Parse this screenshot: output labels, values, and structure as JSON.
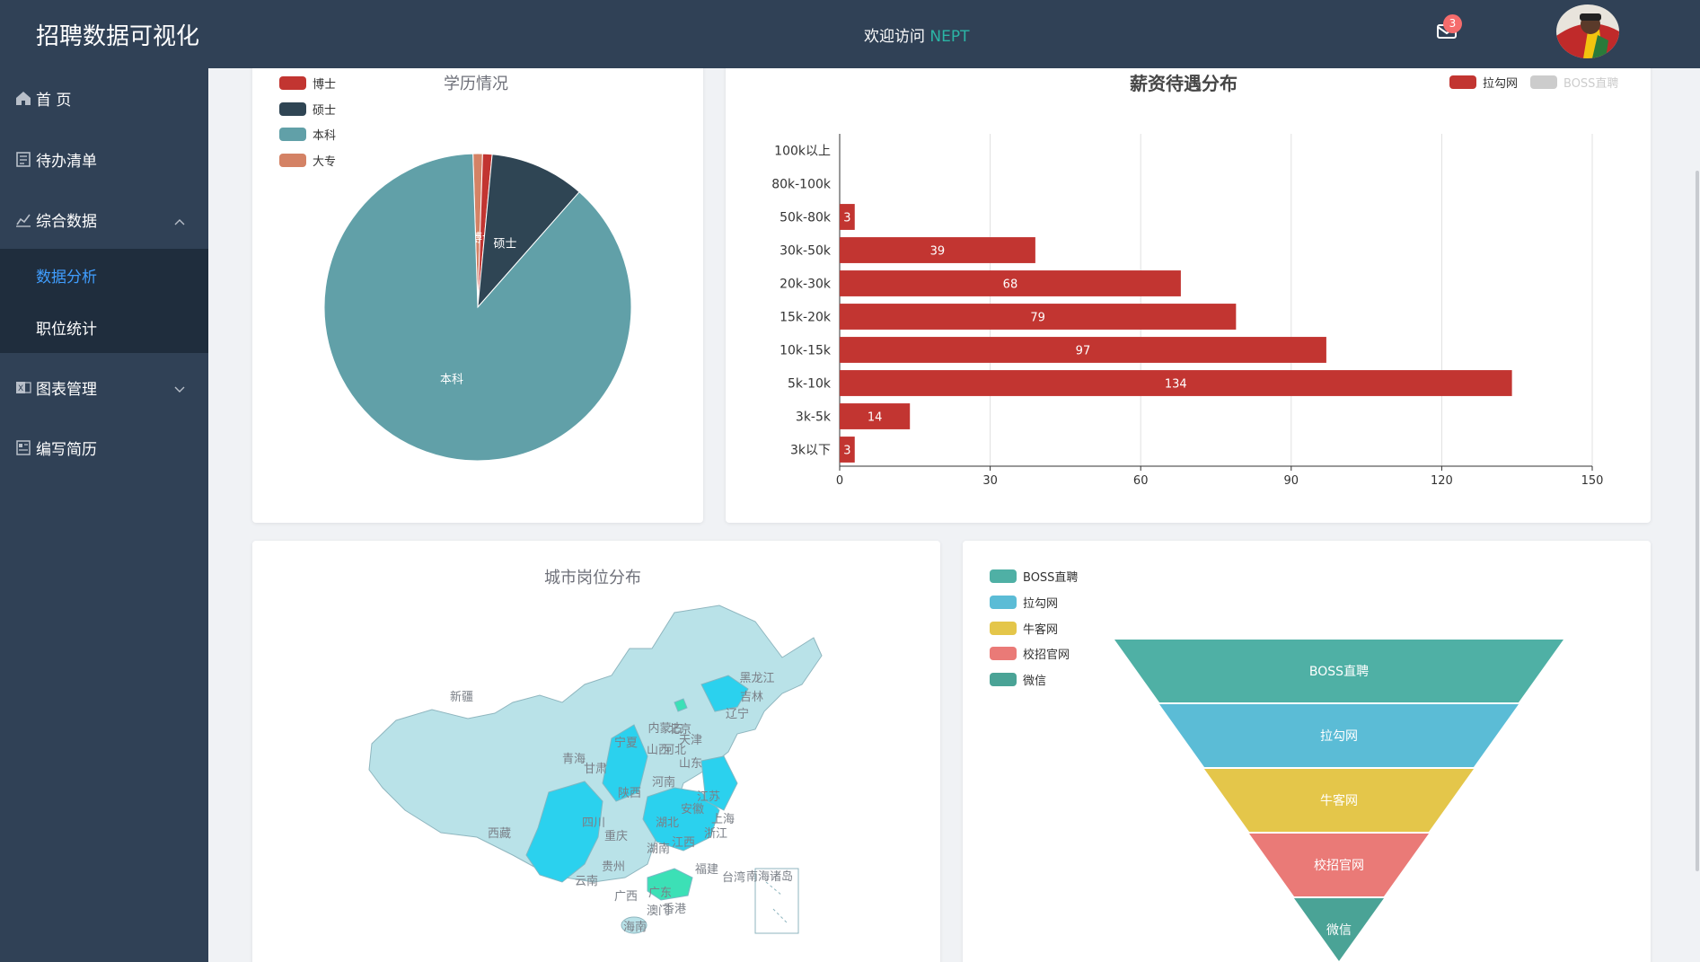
{
  "header": {
    "app_title": "招聘数据可视化",
    "welcome_text": "欢迎访问",
    "welcome_brand": "NEPT",
    "mail_badge": "3",
    "mail_icon": "mail-icon",
    "avatar_icon": "user-avatar"
  },
  "sidebar": {
    "items": [
      {
        "label": "首 页",
        "icon": "home-icon"
      },
      {
        "label": "待办清单",
        "icon": "checklist-icon"
      },
      {
        "label": "综合数据",
        "icon": "chart-icon"
      },
      {
        "label": "图表管理",
        "icon": "excel-icon"
      },
      {
        "label": "编写简历",
        "icon": "resume-icon"
      }
    ],
    "sub_items": [
      {
        "label": "数据分析",
        "active": true
      },
      {
        "label": "职位统计",
        "active": false
      }
    ]
  },
  "education_card": {
    "title": "学历情况",
    "legend": [
      "博士",
      "硕士",
      "本科",
      "大专"
    ],
    "colors": [
      "#c23531",
      "#2f4554",
      "#61a0a8",
      "#d48265"
    ]
  },
  "salary_card": {
    "title": "薪资待遇分布",
    "legend": [
      "拉勾网",
      "BOSS直聘"
    ],
    "legend_colors": [
      "#c23531",
      "#cccccc"
    ]
  },
  "map_card": {
    "title": "城市岗位分布",
    "labels": [
      "新疆",
      "西藏",
      "内蒙古",
      "黑龙江",
      "吉林",
      "辽宁",
      "青海",
      "甘肃",
      "宁夏",
      "山西",
      "河北",
      "北京",
      "天津",
      "山东",
      "河南",
      "陕西",
      "四川",
      "重庆",
      "湖北",
      "安徽",
      "江苏",
      "上海",
      "浙江",
      "湖南",
      "江西",
      "贵州",
      "云南",
      "广西",
      "广东",
      "福建",
      "台湾",
      "香港",
      "澳门",
      "海南",
      "南海诸岛"
    ]
  },
  "funnel_card": {
    "legend": [
      "BOSS直聘",
      "拉勾网",
      "牛客网",
      "校招官网",
      "微信"
    ],
    "colors": [
      "#4fb0a5",
      "#5bbcd6",
      "#e4c64a",
      "#ea7a77",
      "#4aa396"
    ]
  },
  "chart_data": [
    {
      "type": "pie",
      "title": "学历情况",
      "categories": [
        "博士",
        "硕士",
        "本科",
        "大专"
      ],
      "values": [
        1,
        10,
        88,
        1
      ],
      "legend_position": "top-left"
    },
    {
      "type": "bar",
      "orientation": "horizontal",
      "title": "薪资待遇分布",
      "categories": [
        "3k以下",
        "3k-5k",
        "5k-10k",
        "10k-15k",
        "15k-20k",
        "20k-30k",
        "30k-50k",
        "50k-80k",
        "80k-100k",
        "100k以上"
      ],
      "series": [
        {
          "name": "拉勾网",
          "values": [
            3,
            14,
            134,
            97,
            79,
            68,
            39,
            3,
            0,
            0
          ]
        }
      ],
      "xlim": [
        0,
        150
      ],
      "xticks": [
        0,
        30,
        60,
        90,
        120,
        150
      ],
      "grid": true,
      "legend_position": "top-right"
    },
    {
      "type": "funnel",
      "categories": [
        "BOSS直聘",
        "拉勾网",
        "牛客网",
        "校招官网",
        "微信"
      ],
      "values": [
        100,
        80,
        60,
        40,
        20
      ],
      "legend_position": "top-left"
    }
  ]
}
